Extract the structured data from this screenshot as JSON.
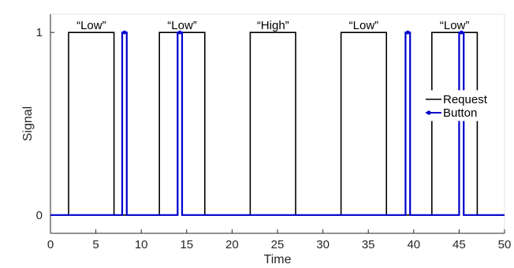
{
  "chart_data": {
    "type": "line",
    "xlabel": "Time",
    "ylabel": "Signal",
    "xlim": [
      0,
      50
    ],
    "ylim": [
      -0.1,
      1.1
    ],
    "xticks": [
      0,
      5,
      10,
      15,
      20,
      25,
      30,
      35,
      40,
      45,
      50
    ],
    "yticks": [
      0,
      1
    ],
    "grid": false,
    "legend": {
      "placement": "right",
      "entries": [
        "Request",
        "Button"
      ]
    },
    "series": [
      {
        "name": "Request",
        "color": "#000000",
        "marker": "none",
        "x": [
          0,
          2,
          2,
          7,
          7,
          12,
          12,
          17,
          17,
          22,
          22,
          27,
          27,
          32,
          32,
          37,
          37,
          42,
          42,
          47,
          47,
          50
        ],
        "y": [
          0,
          0,
          1,
          1,
          0,
          0,
          1,
          1,
          0,
          0,
          1,
          1,
          0,
          0,
          1,
          1,
          0,
          0,
          1,
          1,
          0,
          0
        ]
      },
      {
        "name": "Button",
        "color": "#0000cc",
        "marker": "dot",
        "pulses": [
          {
            "start": 7.9,
            "end": 8.4
          },
          {
            "start": 14.0,
            "end": 14.5
          },
          {
            "start": 39.1,
            "end": 39.6
          },
          {
            "start": 45.0,
            "end": 45.5
          }
        ],
        "baseline": 0,
        "high": 1
      }
    ],
    "annotations": [
      {
        "text": "“Low”",
        "x": 4.5,
        "y": 1.0
      },
      {
        "text": "“Low”",
        "x": 14.5,
        "y": 1.0
      },
      {
        "text": "“High”",
        "x": 24.5,
        "y": 1.0
      },
      {
        "text": "“Low”",
        "x": 34.5,
        "y": 1.0
      },
      {
        "text": "“Low”",
        "x": 44.5,
        "y": 1.0
      }
    ]
  }
}
